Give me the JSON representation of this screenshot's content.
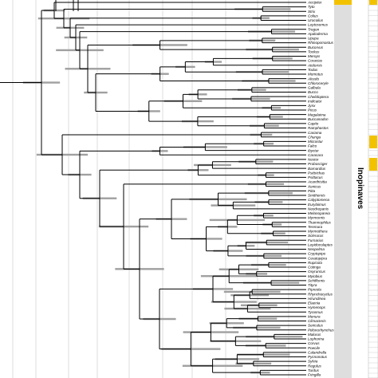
{
  "clade_label": "Inopinaves",
  "taxa": [
    "Accipiter",
    "Tyto",
    "Strix",
    "Colius",
    "Urocolius",
    "Leptosomus",
    "Trogon",
    "Apaloderma",
    "Upupa",
    "Rhinopomastus",
    "Bucorvus",
    "Tockus",
    "Merops",
    "Coracias",
    "Atelornis",
    "Todus",
    "Momotus",
    "Alcedo",
    "Chloroceryle",
    "Galbula",
    "Bucco",
    "Chelidoptera",
    "Indicator",
    "Jynx",
    "Picus",
    "Megalaima",
    "Buccanodon",
    "Capito",
    "Ramphastos",
    "Cariama",
    "Chunga",
    "Micrastur",
    "Falco",
    "Ibycter",
    "Caracara",
    "Nestor",
    "Probosciger",
    "Barnardius",
    "Psittrichas",
    "Psittacus",
    "Acanthisitta",
    "Xenicus",
    "Pitta",
    "Smithornis",
    "Calyptomena",
    "Eurylaimus",
    "Neodrepanis",
    "Melanopareia",
    "Myrmornis",
    "Thamnophilus",
    "Terenura",
    "Myrmothera",
    "Sclerurus",
    "Furnarius",
    "Lepidocolaptes",
    "Neopelma",
    "Cryptopipo",
    "Ceratopipra",
    "Rupicola",
    "Cotinga",
    "Oxyruncus",
    "Myiobius",
    "Schiffornis",
    "Tityra",
    "Pipreola",
    "Rhynchocyclus",
    "Hirundinea",
    "Elaenia",
    "Hymenops",
    "Tyrannus",
    "Menura",
    "Climacteris",
    "Sericulus",
    "Ptilonorhynchus",
    "Malurus",
    "Lophorina",
    "Corvus",
    "Poecile",
    "Calandrella",
    "Pycnonotus",
    "Sylvia",
    "Regulus",
    "Turdus",
    "Fringilla"
  ],
  "colors": {
    "branch": "#000000",
    "interval_bar": "#a0a0a0",
    "panel": "#dedede",
    "marker": "#f2c200"
  }
}
